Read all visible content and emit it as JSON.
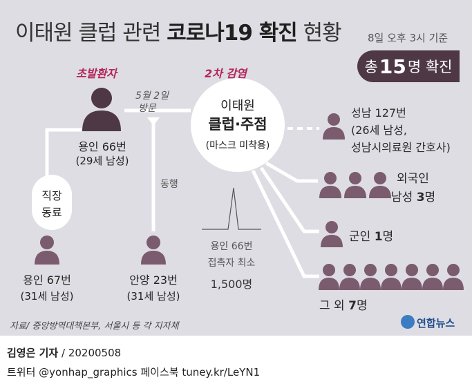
{
  "title": {
    "main": "이태원 클럽 관련",
    "bold": "코로나19 확진",
    "tail": "현황"
  },
  "date_text": "8일 오후 3시 기준",
  "total": {
    "prefix": "총",
    "number": "15",
    "suffix": "명 확진"
  },
  "first_case": {
    "heading": "초발환자",
    "name": "용인 66번",
    "info": "(29세 남성)"
  },
  "visit": {
    "line1": "5월 2일",
    "line2": "방문"
  },
  "second_infection": "2차 감염",
  "venue": {
    "line1": "이태원",
    "line2": "클럽·주점",
    "line3": "(마스크 미착용)"
  },
  "colleague": {
    "line1": "직장",
    "line2": "동료",
    "name": "용인 67번",
    "info": "(31세 남성)"
  },
  "companion": {
    "label": "동행",
    "name": "안양 23번",
    "info": "(31세 남성)"
  },
  "contacts": {
    "line1": "용인 66번",
    "line2": "접촉자 최소",
    "line3": "1,500명"
  },
  "branches": [
    {
      "line1": "성남 127번",
      "line2": "(26세 남성,",
      "line3": "성남시의료원 간호사)"
    },
    {
      "line1": "외국인",
      "line2_pre": "남성 ",
      "line2_bold": "3",
      "line2_post": "명"
    },
    {
      "pre": "군인 ",
      "bold": "1",
      "post": "명"
    },
    {
      "pre": "그 외 ",
      "bold": "7",
      "post": "명"
    }
  ],
  "source": "자료/ 중앙방역대책본부, 서울시 등 각 지자체",
  "logo": "연합뉴스",
  "credit": {
    "name": "김영은 기자",
    "date": " / 20200508"
  },
  "social": "트위터 @yonhap_graphics  페이스북 tuney.kr/LeYN1",
  "colors": {
    "person": "#7a5c6e",
    "badge": "#4e3846",
    "accent": "#b4245a",
    "background": "#dedde3"
  }
}
